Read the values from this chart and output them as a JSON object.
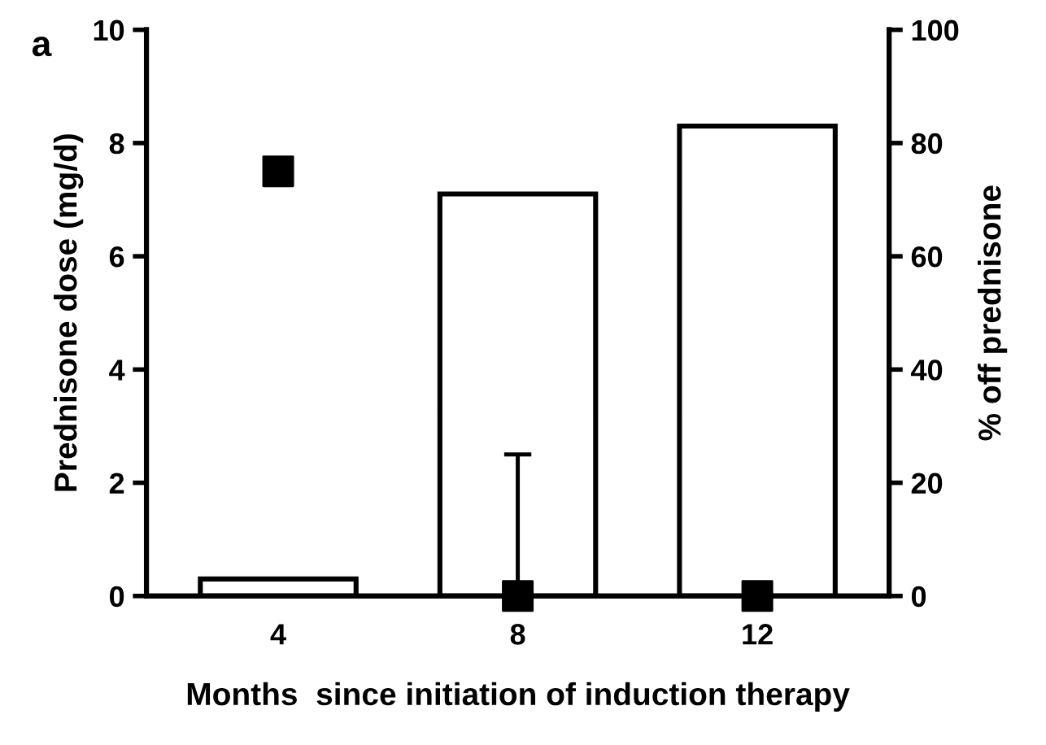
{
  "chart_data": {
    "type": "bar",
    "xlabel": "Months  since initiation of induction therapy",
    "ylabel": "Prednisone dose (mg/d)",
    "y2label": "% off prednisone",
    "annotations": [
      "a"
    ],
    "categories": [
      "4",
      "8",
      "12"
    ],
    "series": [
      {
        "axis": "y2",
        "color": "#ffffff",
        "values": [
          3,
          71,
          83
        ]
      },
      {
        "type": "scatter",
        "axis": "y",
        "color": "#000000",
        "marker": "square",
        "values": [
          7.5,
          0,
          0
        ],
        "errors": [
          null,
          [
            0,
            2.5
          ],
          null
        ]
      }
    ],
    "ylim": [
      0,
      10
    ],
    "yticks": [
      0,
      2,
      4,
      6,
      8,
      10
    ],
    "y2lim": [
      0,
      100
    ],
    "y2ticks": [
      0,
      20,
      40,
      60,
      80,
      100
    ],
    "grid": false
  }
}
